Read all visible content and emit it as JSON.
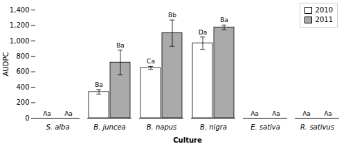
{
  "chart_data": {
    "type": "bar",
    "categories": [
      "S. alba",
      "B. juncea",
      "B. napus",
      "B. nigra",
      "E. sativa",
      "R. sativus"
    ],
    "series": [
      {
        "name": "2010",
        "color": "#ffffff",
        "values": [
          0,
          340,
          650,
          970,
          0,
          0
        ],
        "errors": [
          0,
          30,
          20,
          80,
          0,
          0
        ],
        "annotations": [
          "Aa",
          "Ba",
          "Ca",
          "Da",
          "Aa",
          "Aa"
        ]
      },
      {
        "name": "2011",
        "color": "#aaaaaa",
        "values": [
          0,
          720,
          1100,
          1175,
          0,
          0
        ],
        "errors": [
          0,
          160,
          170,
          30,
          0,
          0
        ],
        "annotations": [
          "Aa",
          "Ba",
          "Bb",
          "Ba",
          "Aa",
          "Aa"
        ]
      }
    ],
    "ylabel": "AUDPC",
    "xlabel": "Culture",
    "ylim": [
      0,
      1400
    ],
    "yticks": [
      0,
      200,
      400,
      600,
      800,
      1000,
      1200,
      1400
    ],
    "legend": "upper right"
  }
}
